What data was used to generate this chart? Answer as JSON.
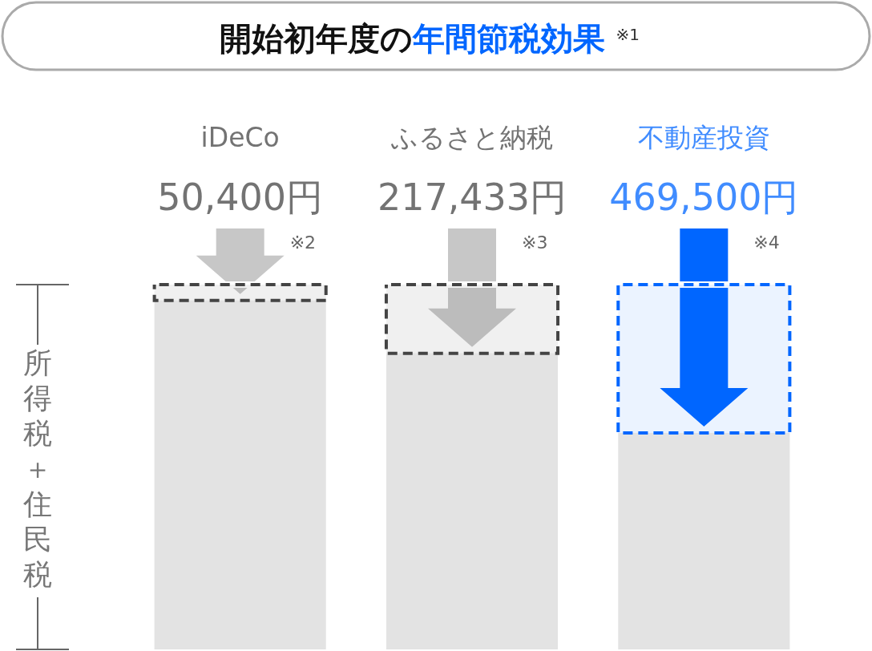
{
  "chart_data": {
    "type": "bar",
    "title": "開始初年度の年間節税効果",
    "annotations": [
      "※1",
      "※2",
      "※3",
      "※4"
    ],
    "ylabel": "所得税＋住民税",
    "categories": [
      "iDeCo",
      "ふるさと納税",
      "不動産投資"
    ],
    "stacked": true,
    "ylim": [
      0,
      1155000
    ],
    "tick_labels": false,
    "series": [
      {
        "color": "#e3e3e3",
        "values": [
          1104600,
          937567,
          685500
        ]
      },
      {
        "colors": [
          "#444444",
          "#444444",
          "#0066ff"
        ],
        "values": [
          50400,
          217433,
          469500
        ],
        "value_labels": [
          "50,400円",
          "217,433円",
          "469,500円"
        ]
      }
    ]
  }
}
